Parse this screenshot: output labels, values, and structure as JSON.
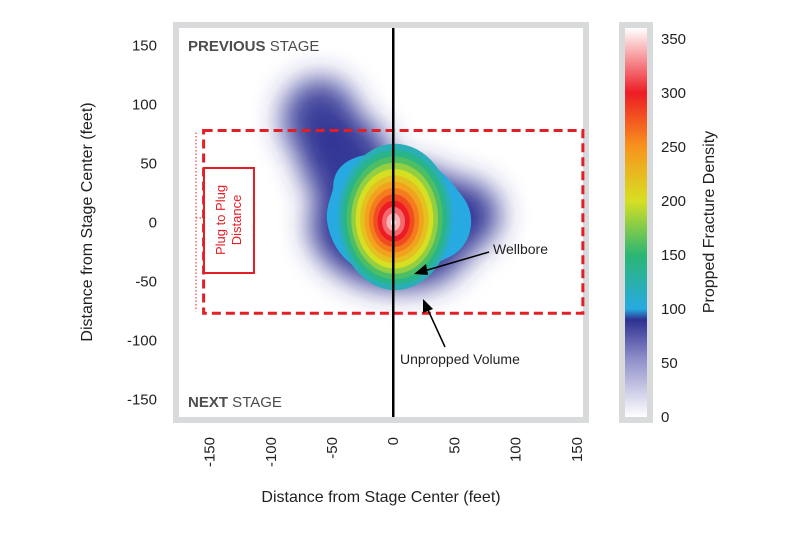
{
  "chart_data": {
    "type": "heatmap",
    "xlabel": "Distance from Stage Center (feet)",
    "ylabel": "Distance from Stage Center (feet)",
    "xlim": [
      -175,
      155
    ],
    "ylim": [
      -165,
      165
    ],
    "x_ticks": [
      -150,
      -100,
      -50,
      0,
      50,
      100,
      150
    ],
    "y_ticks": [
      150,
      100,
      50,
      0,
      -50,
      -100,
      -150
    ],
    "colorbar": {
      "label": "Propped Fracture Density",
      "ticks": [
        350,
        300,
        250,
        200,
        150,
        100,
        50,
        0
      ],
      "range": [
        0,
        360
      ],
      "stops": [
        {
          "v": 0,
          "color": "#ffffff"
        },
        {
          "v": 55,
          "color": "#8c8cc8"
        },
        {
          "v": 90,
          "color": "#2e3192"
        },
        {
          "v": 100,
          "color": "#27aae1"
        },
        {
          "v": 150,
          "color": "#2bb673"
        },
        {
          "v": 200,
          "color": "#d7df23"
        },
        {
          "v": 250,
          "color": "#f7941d"
        },
        {
          "v": 300,
          "color": "#ed1c24"
        },
        {
          "v": 360,
          "color": "#ffffff"
        }
      ]
    },
    "density_center": {
      "x": 0,
      "y": 0,
      "peak": 360
    },
    "wellbore_x": 0,
    "plug_interval_y": [
      -77,
      78
    ],
    "plug_interval_x": [
      -150,
      150
    ],
    "annotations": {
      "previous_stage_bold": "PREVIOUS",
      "previous_stage_rest": " STAGE",
      "next_stage_bold": "NEXT",
      "next_stage_rest": " STAGE",
      "wellbore": "Wellbore",
      "unpropped": "Unpropped Volume",
      "plug_line1": "Plug to Plug",
      "plug_line2": "Distance"
    }
  },
  "colors": {
    "frame": "#d9dadb",
    "dash": "#e31e24",
    "wellbore": "#000000"
  }
}
